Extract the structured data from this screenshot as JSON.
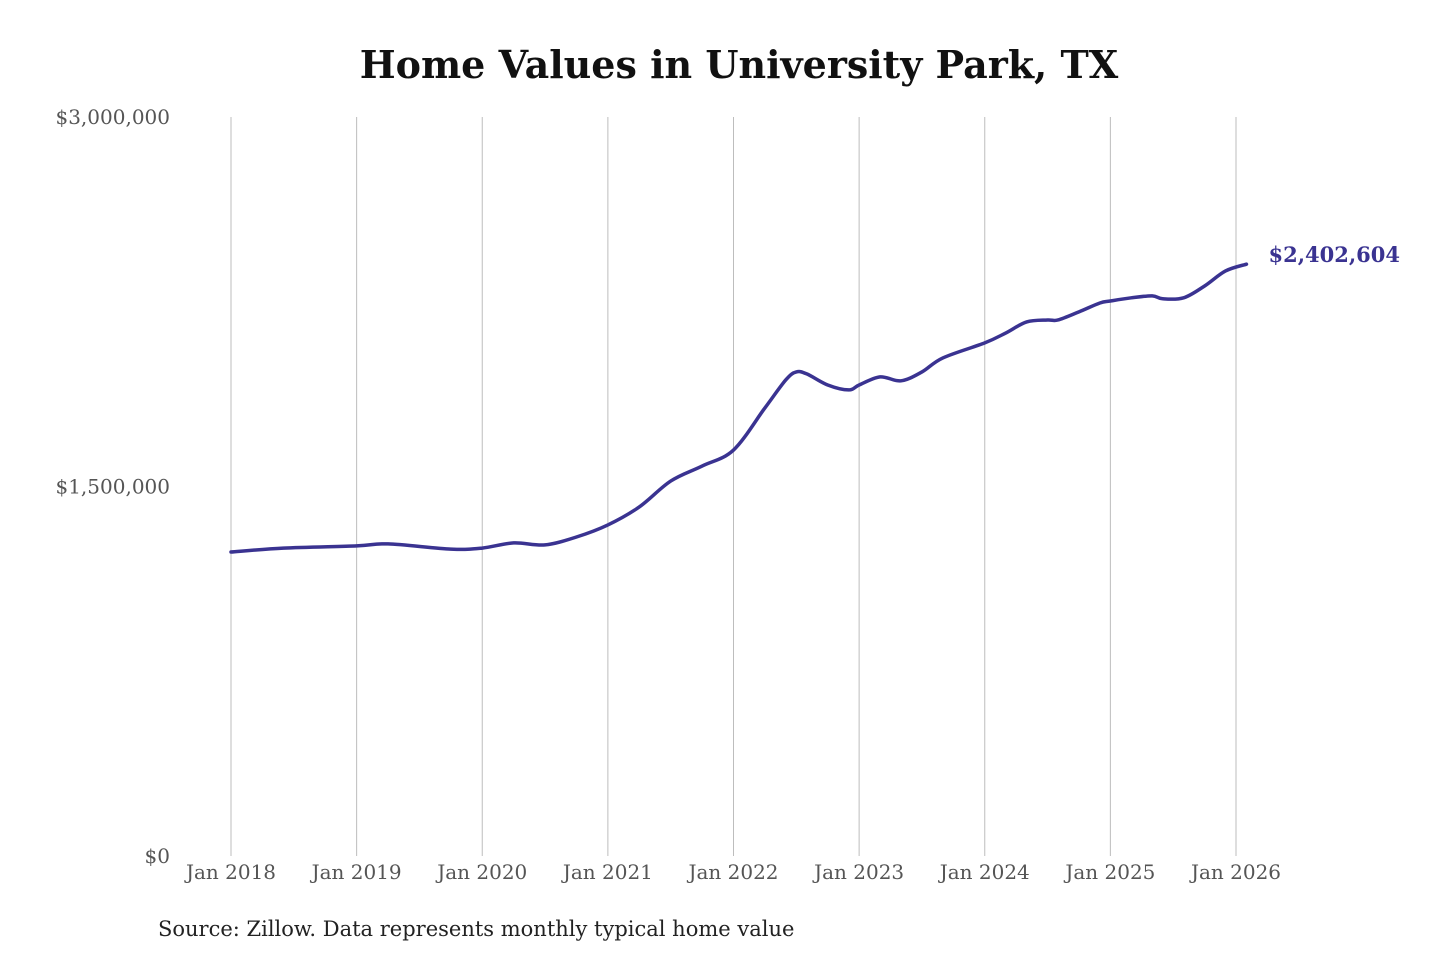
{
  "chart_data": {
    "type": "line",
    "title": "Home Values in University Park, TX",
    "source": "Source: Zillow. Data represents monthly typical home value",
    "xlabel": "",
    "ylabel": "",
    "ylim": [
      0,
      3000000
    ],
    "y_ticks": [
      0,
      1500000,
      3000000
    ],
    "y_tick_labels": [
      "$0",
      "$1,500,000",
      "$3,000,000"
    ],
    "x_ticks": [
      "2018-01",
      "2019-01",
      "2020-01",
      "2021-01",
      "2022-01",
      "2023-01",
      "2024-01",
      "2025-01",
      "2026-01"
    ],
    "x_tick_labels": [
      "Jan 2018",
      "Jan 2019",
      "Jan 2020",
      "Jan 2021",
      "Jan 2022",
      "Jan 2023",
      "Jan 2024",
      "Jan 2025",
      "Jan 2026"
    ],
    "grid": "vertical",
    "line_color": "#3a3391",
    "end_label": "$2,402,604",
    "series": [
      {
        "x": [
          "2018-01",
          "2018-06",
          "2019-01",
          "2019-04",
          "2019-10",
          "2020-01",
          "2020-04",
          "2020-07",
          "2020-10",
          "2021-01",
          "2021-04",
          "2021-07",
          "2021-10",
          "2022-01",
          "2022-04",
          "2022-06",
          "2022-07",
          "2022-08",
          "2022-10",
          "2022-12",
          "2023-01",
          "2023-03",
          "2023-05",
          "2023-07",
          "2023-09",
          "2024-01",
          "2024-03",
          "2024-05",
          "2024-07",
          "2024-08",
          "2024-10",
          "2024-12",
          "2025-01",
          "2025-03",
          "2025-05",
          "2025-06",
          "2025-08",
          "2025-10",
          "2025-12",
          "2026-02"
        ],
        "values": [
          1234000,
          1250000,
          1259000,
          1267000,
          1246000,
          1250000,
          1271000,
          1263000,
          1295000,
          1344000,
          1417000,
          1522000,
          1583000,
          1648000,
          1819000,
          1933000,
          1965000,
          1957000,
          1912000,
          1892000,
          1912000,
          1945000,
          1929000,
          1965000,
          2022000,
          2083000,
          2123000,
          2168000,
          2176000,
          2176000,
          2209000,
          2245000,
          2253000,
          2266000,
          2274000,
          2262000,
          2266000,
          2314000,
          2375000,
          2402604
        ]
      }
    ]
  }
}
